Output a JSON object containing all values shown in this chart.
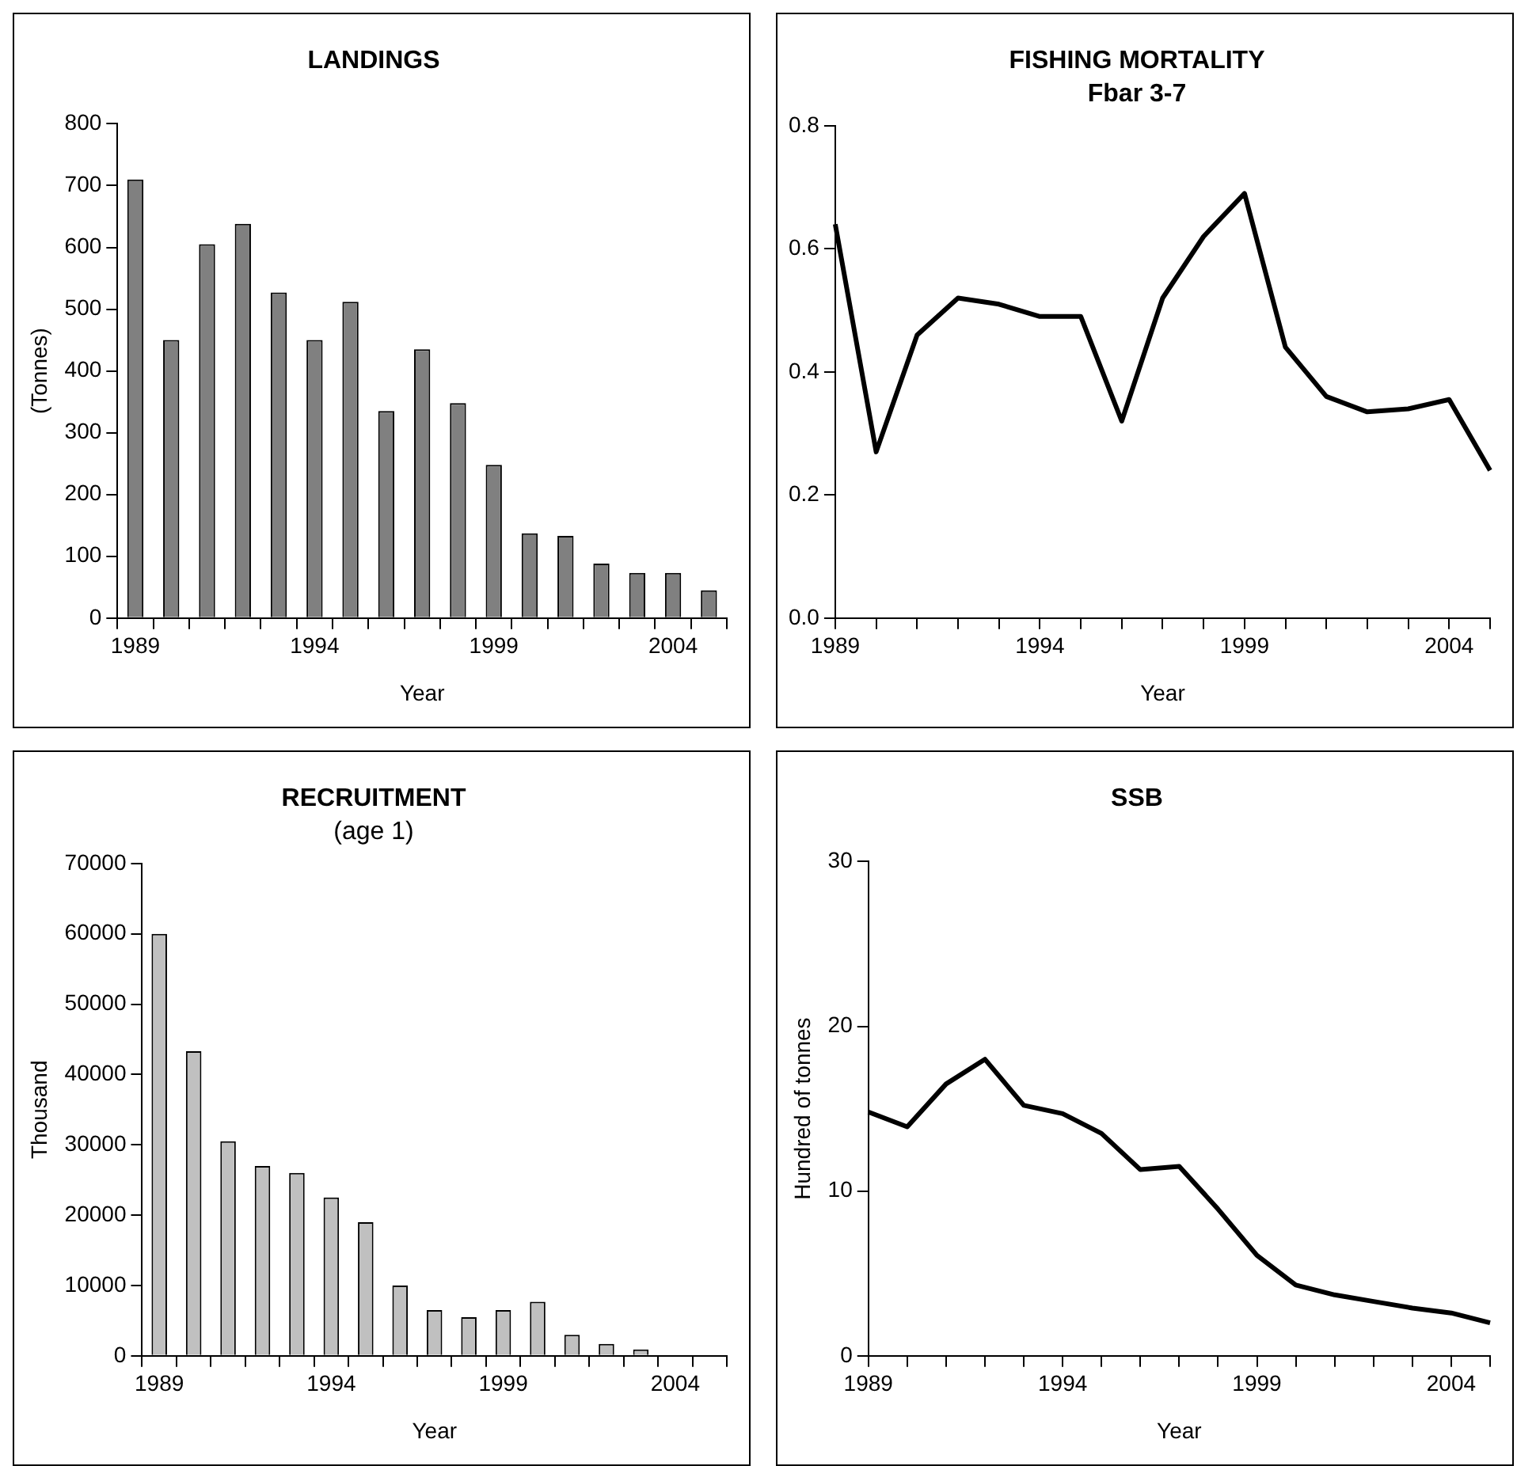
{
  "chart_data": [
    {
      "type": "bar",
      "title": "LANDINGS",
      "xlabel": "Year",
      "ylabel": "(Tonnes)",
      "categories": [
        "1989",
        null,
        null,
        null,
        null,
        "1994",
        null,
        null,
        null,
        null,
        "1999",
        null,
        null,
        null,
        null,
        "2004",
        null
      ],
      "values": [
        710,
        450,
        605,
        638,
        527,
        450,
        512,
        335,
        435,
        348,
        248,
        137,
        133,
        88,
        73,
        73,
        45
      ],
      "color": "#808080",
      "ylim": [
        0,
        800
      ],
      "yticks": [
        0,
        100,
        200,
        300,
        400,
        500,
        600,
        700,
        800
      ],
      "grid": false,
      "legend": false
    },
    {
      "type": "line",
      "title": "FISHING MORTALITY",
      "subtitle": "Fbar 3-7",
      "xlabel": "Year",
      "categories": [
        "1989",
        null,
        null,
        null,
        null,
        "1994",
        null,
        null,
        null,
        null,
        "1999",
        null,
        null,
        null,
        null,
        "2004",
        null
      ],
      "values": [
        0.64,
        0.27,
        0.46,
        0.52,
        0.51,
        0.49,
        0.49,
        0.32,
        0.52,
        0.62,
        0.69,
        0.44,
        0.36,
        0.335,
        0.34,
        0.355,
        0.24
      ],
      "color": "#000000",
      "ylim": [
        0,
        0.8
      ],
      "yticks": [
        {
          "value": 0,
          "label": "0.0"
        },
        0.2,
        0.4,
        0.6,
        0.8
      ],
      "grid": false,
      "legend": false,
      "marker": "none",
      "line_style": "solid"
    },
    {
      "type": "bar",
      "title": "RECRUITMENT",
      "subtitle": "(age 1)",
      "xlabel": "Year",
      "ylabel": "Thousand",
      "categories": [
        "1989",
        null,
        null,
        null,
        null,
        "1994",
        null,
        null,
        null,
        null,
        "1999",
        null,
        null,
        null,
        null,
        "2004",
        null
      ],
      "values": [
        60000,
        43300,
        30500,
        27000,
        26000,
        22500,
        19000,
        10000,
        6500,
        5500,
        6500,
        7700,
        3000,
        1700,
        900,
        null,
        null
      ],
      "color": "#c0c0c0",
      "ylim": [
        0,
        70000
      ],
      "yticks": [
        0,
        10000,
        20000,
        30000,
        40000,
        50000,
        60000,
        70000
      ],
      "grid": false,
      "legend": false
    },
    {
      "type": "line",
      "title": "SSB",
      "xlabel": "Year",
      "ylabel": "Hundred of tonnes",
      "categories": [
        "1989",
        null,
        null,
        null,
        null,
        "1994",
        null,
        null,
        null,
        null,
        "1999",
        null,
        null,
        null,
        null,
        "2004",
        null
      ],
      "values": [
        14.8,
        13.9,
        16.5,
        18,
        15.2,
        14.7,
        13.5,
        11.3,
        11.5,
        8.9,
        6.1,
        4.3,
        3.7,
        3.3,
        2.9,
        2.6,
        2.0
      ],
      "color": "#000000",
      "ylim": [
        0,
        30
      ],
      "yticks": [
        0,
        10,
        20,
        30
      ],
      "grid": false,
      "legend": false,
      "marker": "none",
      "line_style": "solid"
    }
  ]
}
